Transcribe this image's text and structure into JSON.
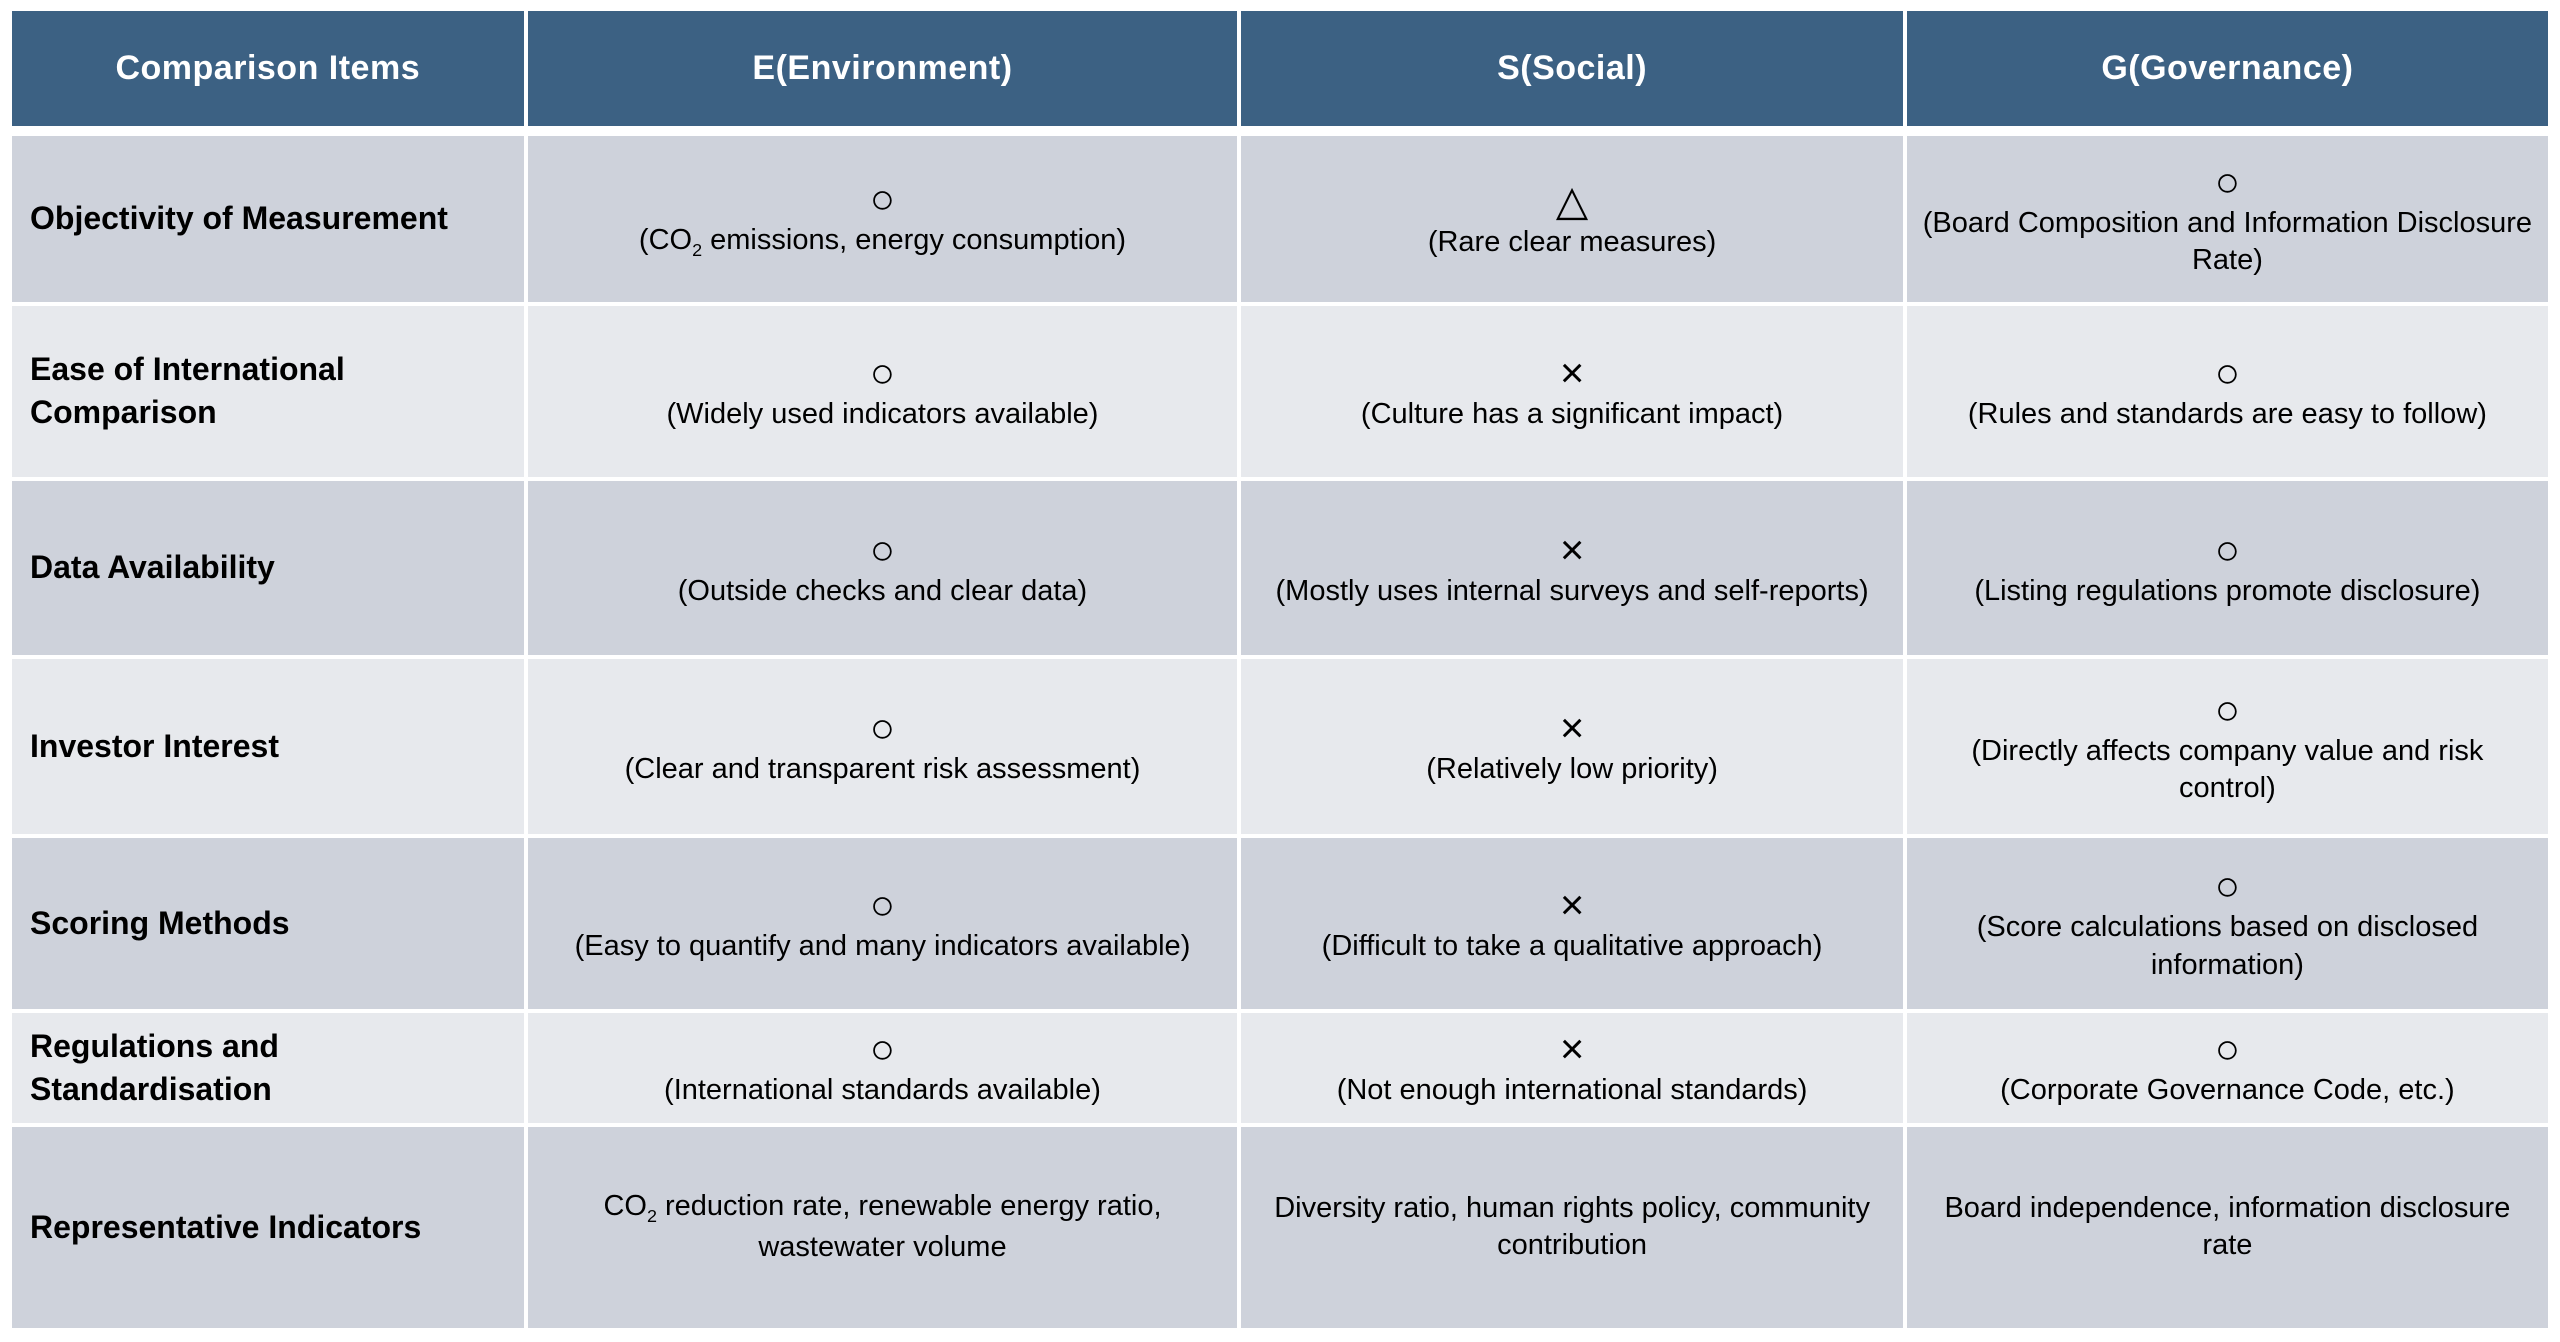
{
  "colors": {
    "header_bg": "#3C6183",
    "header_text": "#FFFFFF",
    "row_odd_bg": "#CED2DB",
    "row_even_bg": "#E7E9ED",
    "body_text": "#000000"
  },
  "table": {
    "headers": [
      "Comparison Items",
      "E(Environment)",
      "S(Social)",
      "G(Governance)"
    ],
    "rows": [
      {
        "item": "Objectivity of Measurement",
        "e": {
          "symbol": "○",
          "pre": "(CO",
          "sub": "2",
          "post": " emissions, energy consumption)"
        },
        "s": {
          "symbol": "△",
          "text": "(Rare clear measures)"
        },
        "g": {
          "symbol": "○",
          "text": "(Board Composition and Information Disclosure Rate)"
        }
      },
      {
        "item": "Ease of International Comparison",
        "e": {
          "symbol": "○",
          "text": "(Widely used indicators available)"
        },
        "s": {
          "symbol": "×",
          "text": "(Culture has a significant impact)"
        },
        "g": {
          "symbol": "○",
          "text": "(Rules and standards are easy to follow)"
        }
      },
      {
        "item": "Data Availability",
        "e": {
          "symbol": "○",
          "text": "(Outside checks and clear data)"
        },
        "s": {
          "symbol": "×",
          "text": "(Mostly uses internal surveys and self-reports)"
        },
        "g": {
          "symbol": "○",
          "text": "(Listing regulations promote disclosure)"
        }
      },
      {
        "item": "Investor Interest",
        "e": {
          "symbol": "○",
          "text": "(Clear and transparent risk assessment)"
        },
        "s": {
          "symbol": "×",
          "text": "(Relatively low priority)"
        },
        "g": {
          "symbol": "○",
          "text": "(Directly affects company value and risk control)"
        }
      },
      {
        "item": "Scoring Methods",
        "e": {
          "symbol": "○",
          "text": "(Easy to quantify and many indicators available)"
        },
        "s": {
          "symbol": "×",
          "text": "(Difficult to take a qualitative approach)"
        },
        "g": {
          "symbol": "○",
          "text": "(Score calculations based on disclosed information)"
        }
      },
      {
        "item": "Regulations and Standardisation",
        "e": {
          "symbol": "○",
          "text": "(International standards available)"
        },
        "s": {
          "symbol": "×",
          "text": "(Not enough international standards)"
        },
        "g": {
          "symbol": "○",
          "text": "(Corporate Governance Code, etc.)"
        }
      },
      {
        "item": "Representative Indicators",
        "e": {
          "pre": "CO",
          "sub": "2",
          "post": " reduction rate, renewable energy ratio, wastewater volume"
        },
        "s": {
          "text": "Diversity ratio, human rights policy, community contribution"
        },
        "g": {
          "text": "Board independence, information disclosure rate"
        }
      }
    ]
  }
}
